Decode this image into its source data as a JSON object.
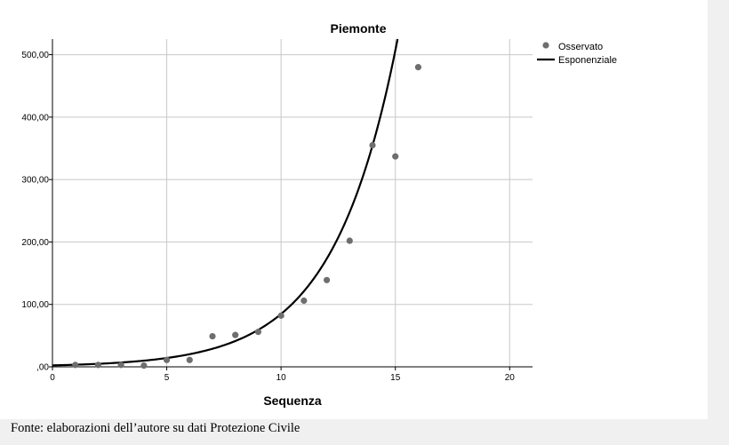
{
  "chart_data": {
    "type": "scatter",
    "title": "Piemonte",
    "xlabel": "Sequenza",
    "ylabel": "",
    "xlim": [
      0,
      21
    ],
    "ylim": [
      0,
      525
    ],
    "x_ticks": [
      0,
      5,
      10,
      15,
      20
    ],
    "x_tick_labels": [
      "0",
      "5",
      "10",
      "15",
      "20"
    ],
    "y_ticks": [
      0,
      100,
      200,
      300,
      400,
      500
    ],
    "y_tick_labels": [
      ",00",
      "100,00",
      "200,00",
      "300,00",
      "400,00",
      "500,00"
    ],
    "grid": true,
    "legend_position": "top-right",
    "series": [
      {
        "name": "Osservato",
        "kind": "points",
        "color": "#6e6e6e",
        "x": [
          1,
          2,
          3,
          4,
          5,
          6,
          7,
          8,
          9,
          10,
          11,
          12,
          13,
          14,
          15,
          16
        ],
        "y": [
          3,
          3,
          3,
          2,
          11,
          11,
          49,
          51,
          56,
          82,
          106,
          139,
          202,
          355,
          337,
          480
        ]
      },
      {
        "name": "Esponenziale",
        "kind": "curve",
        "color": "#000000",
        "function": "y = 2.36 * exp(0.358 * x)",
        "a": 2.36,
        "b": 0.358
      }
    ]
  },
  "caption": "Fonte: elaborazioni dell’autore su dati Protezione Civile"
}
